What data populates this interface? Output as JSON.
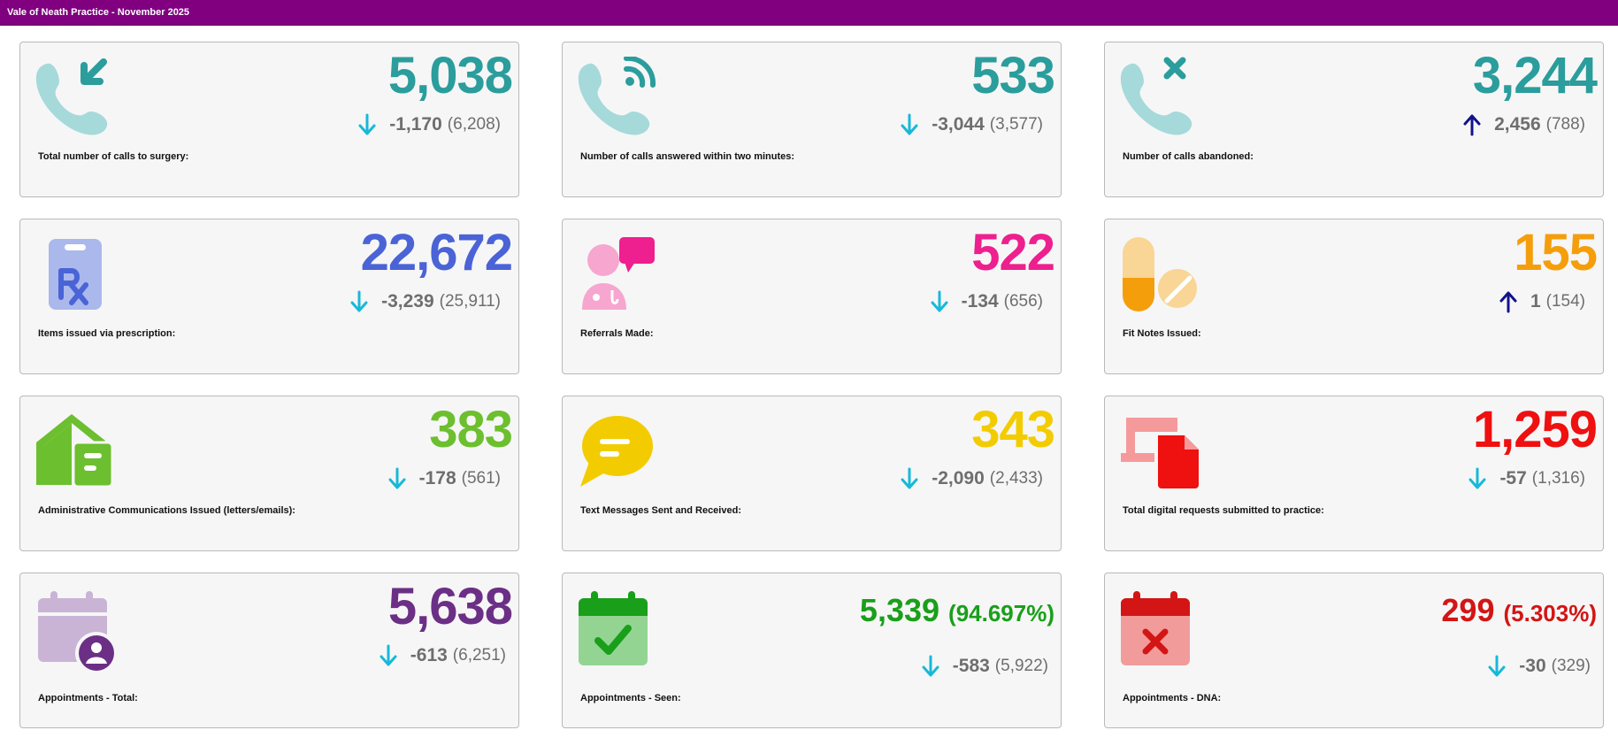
{
  "header": {
    "title": "Vale of Neath Practice - November 2025"
  },
  "colors": {
    "header_bg": "#800080",
    "teal": "#2a9d9c",
    "blue": "#4a63d6",
    "pink": "#ee1f8e",
    "orange": "#f59e0b",
    "green": "#6cbf2e",
    "yellow": "#f2cc00",
    "red": "#ef1010",
    "purple": "#6b2f86",
    "seen_green": "#1a9f1a",
    "dna_red": "#d31515",
    "arrow_down": "#16b9d9",
    "arrow_up": "#12128c"
  },
  "cards": [
    {
      "id": "calls-total",
      "icon": "phone-incoming-icon",
      "value": "5,038",
      "change": "-1,170",
      "previous": "(6,208)",
      "trend": "down",
      "label": "Total number of calls to surgery:"
    },
    {
      "id": "calls-answered",
      "icon": "phone-signal-icon",
      "value": "533",
      "change": "-3,044",
      "previous": "(3,577)",
      "trend": "down",
      "label": "Number of calls answered within two minutes:"
    },
    {
      "id": "calls-abandoned",
      "icon": "phone-missed-icon",
      "value": "3,244",
      "change": "2,456",
      "previous": "(788)",
      "trend": "up",
      "label": "Number of calls abandoned:"
    },
    {
      "id": "prescriptions",
      "icon": "prescription-icon",
      "value": "22,672",
      "change": "-3,239",
      "previous": "(25,911)",
      "trend": "down",
      "label": "Items issued via prescription:"
    },
    {
      "id": "referrals",
      "icon": "doctor-chat-icon",
      "value": "522",
      "change": "-134",
      "previous": "(656)",
      "trend": "down",
      "label": "Referrals Made:"
    },
    {
      "id": "fit-notes",
      "icon": "pills-icon",
      "value": "155",
      "change": "1",
      "previous": "(154)",
      "trend": "up",
      "label": "Fit Notes Issued:"
    },
    {
      "id": "admin-comms",
      "icon": "house-letter-icon",
      "value": "383",
      "change": "-178",
      "previous": "(561)",
      "trend": "down",
      "label": "Administrative Communications Issued (letters/emails):"
    },
    {
      "id": "text-messages",
      "icon": "speech-bubble-icon",
      "value": "343",
      "change": "-2,090",
      "previous": "(2,433)",
      "trend": "down",
      "label": "Text Messages Sent and Received:"
    },
    {
      "id": "digital-requests",
      "icon": "laptop-document-icon",
      "value": "1,259",
      "change": "-57",
      "previous": "(1,316)",
      "trend": "down",
      "label": "Total digital requests submitted to practice:"
    },
    {
      "id": "appts-total",
      "icon": "calendar-person-icon",
      "value": "5,638",
      "change": "-613",
      "previous": "(6,251)",
      "trend": "down",
      "label": "Appointments - Total:"
    },
    {
      "id": "appts-seen",
      "icon": "calendar-check-icon",
      "value": "5,339",
      "percent": "(94.697%)",
      "change": "-583",
      "previous": "(5,922)",
      "trend": "down",
      "label": "Appointments - Seen:"
    },
    {
      "id": "appts-dna",
      "icon": "calendar-x-icon",
      "value": "299",
      "percent": "(5.303%)",
      "change": "-30",
      "previous": "(329)",
      "trend": "down",
      "label": "Appointments - DNA:"
    }
  ]
}
